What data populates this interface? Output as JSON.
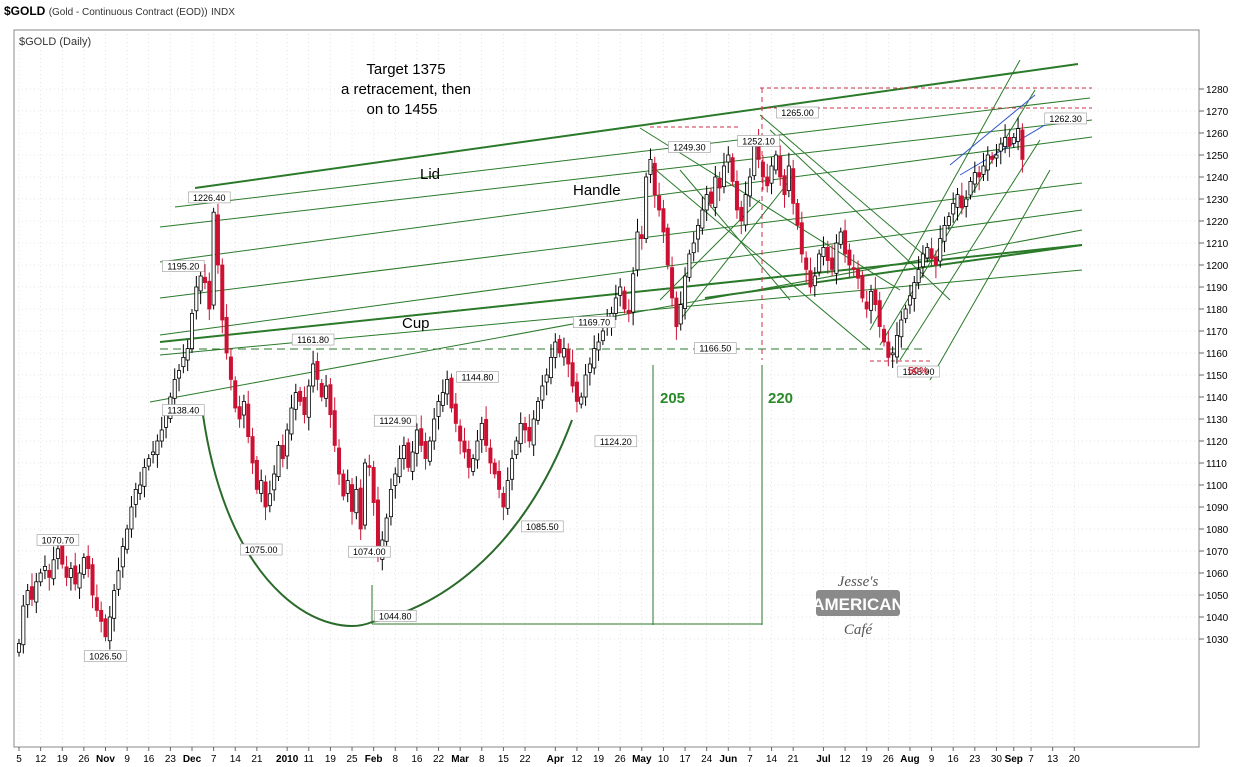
{
  "header": {
    "symbol": "$GOLD",
    "description": "(Gold - Continuous Contract (EOD))",
    "exchange": "INDX",
    "panel_label": "$GOLD (Daily)"
  },
  "annotations": {
    "target_line1": "Target 1375",
    "target_line2": "a retracement,  then",
    "target_line3": "on  to 1455",
    "lid": "Lid",
    "handle": "Handle",
    "cup": "Cup",
    "measure_left": "205",
    "measure_right": "220",
    "pct_50": "50%"
  },
  "watermark": {
    "line1": "Jesse's",
    "line2": "AMERICAN",
    "line3": "Café"
  },
  "colors": {
    "up": "#000000",
    "down": "#cc1133",
    "grid": "#c8c8c8",
    "fan": "#2a7a2a",
    "cup": "#2a6a2a",
    "annot_green": "#2a8a2a",
    "ref_red": "#cc3344",
    "blue": "#3355cc"
  },
  "chart_data": {
    "type": "candlestick",
    "title": "$GOLD (Daily)",
    "ylim": [
      1020,
      1285
    ],
    "y_ticks": [
      1030,
      1040,
      1050,
      1060,
      1070,
      1080,
      1090,
      1100,
      1110,
      1120,
      1130,
      1140,
      1150,
      1160,
      1170,
      1180,
      1190,
      1200,
      1210,
      1220,
      1230,
      1240,
      1250,
      1260,
      1270,
      1280
    ],
    "x_ticks": [
      {
        "label": "5",
        "i": 0
      },
      {
        "label": "12",
        "i": 5
      },
      {
        "label": "19",
        "i": 10
      },
      {
        "label": "26",
        "i": 15
      },
      {
        "label": "Nov",
        "i": 20,
        "bold": true
      },
      {
        "label": "9",
        "i": 25
      },
      {
        "label": "16",
        "i": 30
      },
      {
        "label": "23",
        "i": 35
      },
      {
        "label": "Dec",
        "i": 40,
        "bold": true
      },
      {
        "label": "7",
        "i": 45
      },
      {
        "label": "14",
        "i": 50
      },
      {
        "label": "21",
        "i": 55
      },
      {
        "label": "2010",
        "i": 62,
        "bold": true
      },
      {
        "label": "11",
        "i": 67
      },
      {
        "label": "19",
        "i": 72
      },
      {
        "label": "25",
        "i": 77
      },
      {
        "label": "Feb",
        "i": 82,
        "bold": true
      },
      {
        "label": "8",
        "i": 87
      },
      {
        "label": "16",
        "i": 92
      },
      {
        "label": "22",
        "i": 97
      },
      {
        "label": "Mar",
        "i": 102,
        "bold": true
      },
      {
        "label": "8",
        "i": 107
      },
      {
        "label": "15",
        "i": 112
      },
      {
        "label": "22",
        "i": 117
      },
      {
        "label": "Apr",
        "i": 124,
        "bold": true
      },
      {
        "label": "12",
        "i": 129
      },
      {
        "label": "19",
        "i": 134
      },
      {
        "label": "26",
        "i": 139
      },
      {
        "label": "May",
        "i": 144,
        "bold": true
      },
      {
        "label": "10",
        "i": 149
      },
      {
        "label": "17",
        "i": 154
      },
      {
        "label": "24",
        "i": 159
      },
      {
        "label": "Jun",
        "i": 164,
        "bold": true
      },
      {
        "label": "7",
        "i": 169
      },
      {
        "label": "14",
        "i": 174
      },
      {
        "label": "21",
        "i": 179
      },
      {
        "label": "Jul",
        "i": 186,
        "bold": true
      },
      {
        "label": "12",
        "i": 191
      },
      {
        "label": "19",
        "i": 196
      },
      {
        "label": "26",
        "i": 201
      },
      {
        "label": "Aug",
        "i": 206,
        "bold": true
      },
      {
        "label": "9",
        "i": 211
      },
      {
        "label": "16",
        "i": 216
      },
      {
        "label": "23",
        "i": 221
      },
      {
        "label": "30",
        "i": 226
      },
      {
        "label": "Sep",
        "i": 230,
        "bold": true
      },
      {
        "label": "7",
        "i": 234
      },
      {
        "label": "13",
        "i": 239
      },
      {
        "label": "20",
        "i": 244
      }
    ],
    "closes": [
      1028,
      1045,
      1052,
      1048,
      1056,
      1060,
      1063,
      1058,
      1066,
      1071,
      1064,
      1058,
      1062,
      1055,
      1060,
      1067,
      1062,
      1050,
      1043,
      1038,
      1031,
      1040,
      1052,
      1061,
      1072,
      1080,
      1090,
      1098,
      1100,
      1108,
      1112,
      1115,
      1120,
      1125,
      1132,
      1140,
      1148,
      1152,
      1158,
      1162,
      1178,
      1190,
      1195,
      1192,
      1180,
      1224,
      1200,
      1175,
      1160,
      1148,
      1135,
      1130,
      1138,
      1122,
      1110,
      1098,
      1102,
      1090,
      1096,
      1105,
      1118,
      1112,
      1125,
      1135,
      1142,
      1138,
      1132,
      1145,
      1155,
      1148,
      1140,
      1145,
      1132,
      1118,
      1105,
      1095,
      1102,
      1088,
      1098,
      1080,
      1110,
      1108,
      1092,
      1068,
      1075,
      1085,
      1098,
      1105,
      1112,
      1118,
      1108,
      1115,
      1125,
      1118,
      1112,
      1120,
      1130,
      1138,
      1142,
      1148,
      1135,
      1128,
      1120,
      1115,
      1108,
      1112,
      1120,
      1128,
      1118,
      1110,
      1105,
      1098,
      1090,
      1102,
      1112,
      1120,
      1128,
      1125,
      1120,
      1130,
      1138,
      1145,
      1150,
      1158,
      1165,
      1160,
      1162,
      1155,
      1145,
      1138,
      1140,
      1150,
      1155,
      1162,
      1165,
      1170,
      1175,
      1178,
      1185,
      1190,
      1180,
      1178,
      1196,
      1215,
      1212,
      1240,
      1248,
      1232,
      1225,
      1215,
      1200,
      1185,
      1172,
      1182,
      1195,
      1205,
      1210,
      1218,
      1225,
      1232,
      1228,
      1240,
      1235,
      1245,
      1250,
      1238,
      1225,
      1220,
      1232,
      1240,
      1255,
      1248,
      1240,
      1236,
      1245,
      1250,
      1240,
      1232,
      1245,
      1228,
      1218,
      1205,
      1198,
      1190,
      1195,
      1205,
      1208,
      1202,
      1198,
      1210,
      1215,
      1205,
      1200,
      1198,
      1194,
      1185,
      1180,
      1188,
      1182,
      1172,
      1165,
      1158,
      1160,
      1168,
      1175,
      1180,
      1186,
      1192,
      1198,
      1205,
      1208,
      1203,
      1200,
      1212,
      1218,
      1222,
      1228,
      1232,
      1226,
      1230,
      1238,
      1242,
      1240,
      1245,
      1250,
      1248,
      1250,
      1255,
      1258,
      1254,
      1258,
      1262,
      1248
    ],
    "labels": [
      {
        "text": "1070.70",
        "i": 9,
        "price": 1070.7,
        "pos": "above"
      },
      {
        "text": "1026.50",
        "i": 20,
        "price": 1026.5,
        "pos": "below"
      },
      {
        "text": "1138.40",
        "i": 38,
        "price": 1138.4,
        "pos": "below"
      },
      {
        "text": "1195.20",
        "i": 38,
        "price": 1195.2,
        "pos": "above"
      },
      {
        "text": "1226.40",
        "i": 44,
        "price": 1226.4,
        "pos": "above"
      },
      {
        "text": "1075.00",
        "i": 56,
        "price": 1075.0,
        "pos": "below"
      },
      {
        "text": "1161.80",
        "i": 68,
        "price": 1161.8,
        "pos": "above"
      },
      {
        "text": "1074.00",
        "i": 81,
        "price": 1074.0,
        "pos": "below"
      },
      {
        "text": "1044.80",
        "i": 87,
        "price": 1044.8,
        "pos": "below"
      },
      {
        "text": "1124.90",
        "i": 87,
        "price": 1124.9,
        "pos": "above"
      },
      {
        "text": "1144.80",
        "i": 106,
        "price": 1144.8,
        "pos": "above"
      },
      {
        "text": "1085.50",
        "i": 121,
        "price": 1085.5,
        "pos": "below"
      },
      {
        "text": "1169.70",
        "i": 133,
        "price": 1169.7,
        "pos": "above"
      },
      {
        "text": "1124.20",
        "i": 138,
        "price": 1124.2,
        "pos": "below"
      },
      {
        "text": "1249.30",
        "i": 155,
        "price": 1249.3,
        "pos": "above"
      },
      {
        "text": "1166.50",
        "i": 161,
        "price": 1166.5,
        "pos": "below"
      },
      {
        "text": "1252.10",
        "i": 171,
        "price": 1252.1,
        "pos": "above"
      },
      {
        "text": "1265.00",
        "i": 180,
        "price": 1265.0,
        "pos": "above"
      },
      {
        "text": "1155.90",
        "i": 208,
        "price": 1155.9,
        "pos": "below"
      },
      {
        "text": "1262.30",
        "i": 242,
        "price": 1262.3,
        "pos": "above"
      }
    ]
  }
}
